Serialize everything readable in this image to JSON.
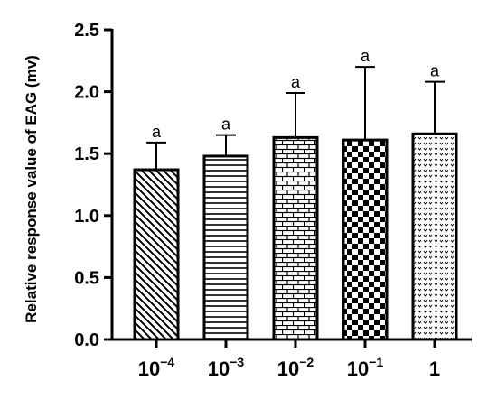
{
  "chart_data": {
    "type": "bar",
    "ylabel": "Relative response value of EAG (mv)",
    "xlabel": "",
    "ylim": [
      0,
      2.5
    ],
    "yticks": [
      0.0,
      0.5,
      1.0,
      1.5,
      2.0,
      2.5
    ],
    "ytick_labels": [
      "0.0",
      "0.5",
      "1.0",
      "1.5",
      "2.0",
      "2.5"
    ],
    "categories": [
      {
        "base": "10",
        "exp": "−4"
      },
      {
        "base": "10",
        "exp": "−3"
      },
      {
        "base": "10",
        "exp": "−2"
      },
      {
        "base": "10",
        "exp": "−1"
      },
      {
        "base": "1",
        "exp": ""
      }
    ],
    "values": [
      1.37,
      1.48,
      1.63,
      1.61,
      1.66
    ],
    "errors": [
      0.22,
      0.17,
      0.36,
      0.59,
      0.42
    ],
    "significance": [
      "a",
      "a",
      "a",
      "a",
      "a"
    ],
    "patterns": [
      "diagonal-hatch",
      "horizontal-lines",
      "brick",
      "checkerboard",
      "dotted"
    ],
    "grid": false,
    "legend": "none"
  }
}
